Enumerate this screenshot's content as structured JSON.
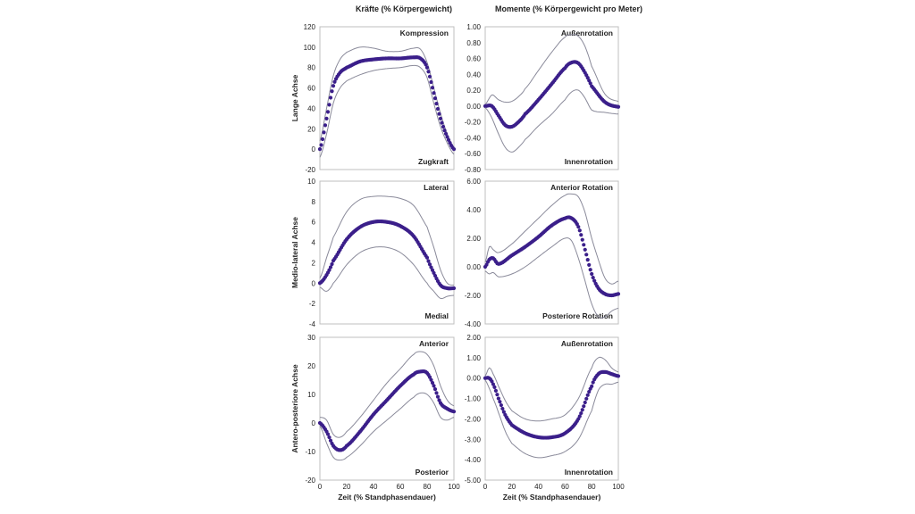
{
  "column_titles": [
    "Kräfte (% Körpergewicht)",
    "Momente (% Körpergewicht pro Meter)"
  ],
  "colors": {
    "mean": "#3b1f8a",
    "band": "#8a8a9a",
    "frame": "#bfbfbf"
  },
  "chart_data": [
    {
      "type": "line",
      "id": "force-long",
      "ylabel": "Lange Achse",
      "xlabel": "",
      "top_label": "Kompression",
      "bottom_label": "Zugkraft",
      "xlim": [
        0,
        100
      ],
      "ylim": [
        -20,
        120
      ],
      "yticks": [
        "120",
        "100",
        "80",
        "60",
        "40",
        "20",
        "0",
        "-20"
      ],
      "ytick_values": [
        120,
        100,
        80,
        60,
        40,
        20,
        0,
        -20
      ],
      "x": [
        0,
        5,
        10,
        15,
        20,
        30,
        40,
        50,
        60,
        70,
        75,
        80,
        85,
        90,
        95,
        100
      ],
      "series": [
        {
          "name": "upper",
          "values": [
            8,
            40,
            72,
            88,
            95,
            100,
            99,
            96,
            96,
            99,
            98,
            85,
            60,
            35,
            15,
            2
          ]
        },
        {
          "name": "mean",
          "values": [
            0,
            30,
            62,
            75,
            80,
            86,
            88,
            89,
            89,
            90,
            89,
            80,
            55,
            30,
            12,
            0
          ]
        },
        {
          "name": "lower",
          "values": [
            -8,
            15,
            45,
            60,
            67,
            73,
            77,
            79,
            80,
            82,
            80,
            70,
            45,
            22,
            6,
            -5
          ]
        }
      ]
    },
    {
      "type": "line",
      "id": "moment-long",
      "ylabel": "",
      "xlabel": "",
      "top_label": "Außenrotation",
      "bottom_label": "Innenrotation",
      "xlim": [
        0,
        100
      ],
      "ylim": [
        -0.8,
        1.0
      ],
      "yticks": [
        "1.00",
        "0.80",
        "0.60",
        "0.40",
        "0.20",
        "0.00",
        "-0.20",
        "-0.40",
        "-0.60",
        "-0.80"
      ],
      "ytick_values": [
        1.0,
        0.8,
        0.6,
        0.4,
        0.2,
        0.0,
        -0.2,
        -0.4,
        -0.6,
        -0.8
      ],
      "x": [
        0,
        5,
        10,
        15,
        20,
        25,
        30,
        40,
        50,
        60,
        65,
        70,
        75,
        80,
        90,
        100
      ],
      "series": [
        {
          "name": "upper",
          "values": [
            0.02,
            0.14,
            0.08,
            0.05,
            0.06,
            0.12,
            0.22,
            0.45,
            0.68,
            0.87,
            0.9,
            0.88,
            0.75,
            0.5,
            0.15,
            0.06
          ]
        },
        {
          "name": "mean",
          "values": [
            0.0,
            0.0,
            -0.12,
            -0.24,
            -0.26,
            -0.2,
            -0.1,
            0.08,
            0.28,
            0.48,
            0.55,
            0.54,
            0.42,
            0.25,
            0.05,
            -0.01
          ]
        },
        {
          "name": "lower",
          "values": [
            -0.02,
            -0.15,
            -0.35,
            -0.52,
            -0.58,
            -0.52,
            -0.42,
            -0.25,
            -0.1,
            0.08,
            0.18,
            0.2,
            0.1,
            -0.05,
            -0.08,
            -0.1
          ]
        }
      ]
    },
    {
      "type": "line",
      "id": "force-ml",
      "ylabel": "Medio-lateral Achse",
      "xlabel": "",
      "top_label": "Lateral",
      "bottom_label": "Medial",
      "xlim": [
        0,
        100
      ],
      "ylim": [
        -4,
        10
      ],
      "yticks": [
        "10",
        "8",
        "6",
        "4",
        "2",
        "0",
        "-2",
        "-4"
      ],
      "ytick_values": [
        10,
        8,
        6,
        4,
        2,
        0,
        -2,
        -4
      ],
      "x": [
        0,
        5,
        10,
        20,
        30,
        40,
        50,
        60,
        70,
        80,
        85,
        90,
        95,
        100
      ],
      "series": [
        {
          "name": "upper",
          "values": [
            0.5,
            2.5,
            4.5,
            7,
            8.2,
            8.5,
            8.5,
            8.3,
            7.6,
            5.5,
            3.5,
            1.3,
            0.0,
            -0.2
          ]
        },
        {
          "name": "mean",
          "values": [
            0,
            0.8,
            2.2,
            4.3,
            5.5,
            6.0,
            6.0,
            5.6,
            4.6,
            2.5,
            1.0,
            -0.2,
            -0.5,
            -0.5
          ]
        },
        {
          "name": "lower",
          "values": [
            -0.4,
            -0.8,
            0.0,
            1.8,
            3.0,
            3.5,
            3.5,
            3.0,
            1.8,
            0.0,
            -0.8,
            -1.5,
            -1.3,
            -1.2
          ]
        }
      ]
    },
    {
      "type": "line",
      "id": "moment-ml",
      "ylabel": "",
      "xlabel": "",
      "top_label": "Anterior Rotation",
      "bottom_label": "Posteriore Rotation",
      "xlim": [
        0,
        100
      ],
      "ylim": [
        -4,
        6
      ],
      "yticks": [
        "6.00",
        "4.00",
        "2.00",
        "0.00",
        "-2.00",
        "-4.00"
      ],
      "ytick_values": [
        6,
        4,
        2,
        0,
        -2,
        -4
      ],
      "x": [
        0,
        3,
        6,
        10,
        20,
        30,
        40,
        50,
        60,
        65,
        70,
        75,
        80,
        85,
        90,
        95,
        100
      ],
      "series": [
        {
          "name": "upper",
          "values": [
            0.3,
            1.4,
            1.2,
            1.0,
            1.6,
            2.5,
            3.4,
            4.3,
            5.0,
            5.1,
            4.9,
            3.8,
            2.0,
            0.5,
            -0.8,
            -1.2,
            -1.0
          ]
        },
        {
          "name": "mean",
          "values": [
            0.0,
            0.5,
            0.6,
            0.2,
            0.8,
            1.4,
            2.1,
            2.9,
            3.4,
            3.4,
            2.8,
            1.2,
            -0.5,
            -1.5,
            -1.9,
            -2.0,
            -1.9
          ]
        },
        {
          "name": "lower",
          "values": [
            -0.3,
            -0.5,
            -0.4,
            -0.7,
            -0.5,
            0.0,
            0.7,
            1.4,
            2.0,
            1.8,
            0.6,
            -1.0,
            -2.6,
            -3.5,
            -3.5,
            -3.1,
            -2.9
          ]
        }
      ]
    },
    {
      "type": "line",
      "id": "force-ap",
      "ylabel": "Antero-posteriore Achse",
      "xlabel": "Zeit (% Standphasendauer)",
      "top_label": "Anterior",
      "bottom_label": "Posterior",
      "xlim": [
        0,
        100
      ],
      "ylim": [
        -20,
        30
      ],
      "yticks": [
        "30",
        "20",
        "10",
        "0",
        "-10",
        "-20"
      ],
      "ytick_values": [
        30,
        20,
        10,
        0,
        -10,
        -20
      ],
      "xticks": [
        "0",
        "20",
        "40",
        "60",
        "80",
        "100"
      ],
      "xtick_values": [
        0,
        20,
        40,
        60,
        80,
        100
      ],
      "x": [
        0,
        5,
        10,
        15,
        20,
        30,
        40,
        50,
        60,
        70,
        75,
        80,
        85,
        90,
        95,
        100
      ],
      "series": [
        {
          "name": "upper",
          "values": [
            2,
            1,
            -4,
            -5,
            -3,
            2,
            8,
            14,
            19,
            24,
            25,
            24,
            20,
            13,
            8,
            6
          ]
        },
        {
          "name": "mean",
          "values": [
            0,
            -3,
            -8,
            -9.5,
            -8,
            -3,
            3,
            8,
            13,
            17,
            18,
            17.5,
            13,
            7,
            5,
            4
          ]
        },
        {
          "name": "lower",
          "values": [
            -1,
            -7,
            -12,
            -13,
            -12,
            -8,
            -3,
            1,
            5,
            9,
            10.5,
            10,
            7,
            2,
            1,
            2
          ]
        }
      ]
    },
    {
      "type": "line",
      "id": "moment-ap",
      "ylabel": "",
      "xlabel": "Zeit (% Standphasendauer)",
      "top_label": "Außenrotation",
      "bottom_label": "Innenrotation",
      "xlim": [
        0,
        100
      ],
      "ylim": [
        -5,
        2
      ],
      "yticks": [
        "2.00",
        "1.00",
        "0.00",
        "-1.00",
        "-2.00",
        "-3.00",
        "-4.00",
        "-5.00"
      ],
      "ytick_values": [
        2,
        1,
        0,
        -1,
        -2,
        -3,
        -4,
        -5
      ],
      "xticks": [
        "0",
        "20",
        "40",
        "60",
        "80",
        "100"
      ],
      "xtick_values": [
        0,
        20,
        40,
        60,
        80,
        100
      ],
      "x": [
        0,
        3,
        6,
        10,
        15,
        20,
        30,
        40,
        50,
        60,
        70,
        80,
        85,
        90,
        95,
        100
      ],
      "series": [
        {
          "name": "upper",
          "values": [
            0.1,
            0.5,
            0.2,
            -0.4,
            -1.1,
            -1.6,
            -2.0,
            -2.1,
            -2.0,
            -1.8,
            -1.0,
            0.5,
            1.0,
            0.9,
            0.5,
            0.3
          ]
        },
        {
          "name": "mean",
          "values": [
            0,
            0,
            -0.3,
            -1.0,
            -1.8,
            -2.3,
            -2.7,
            -2.9,
            -2.9,
            -2.7,
            -2.0,
            -0.4,
            0.2,
            0.3,
            0.2,
            0.1
          ]
        },
        {
          "name": "lower",
          "values": [
            -0.1,
            -0.5,
            -1.0,
            -1.7,
            -2.6,
            -3.2,
            -3.7,
            -3.9,
            -3.8,
            -3.6,
            -3.0,
            -1.6,
            -0.6,
            -0.3,
            -0.3,
            -0.2
          ]
        }
      ]
    }
  ]
}
